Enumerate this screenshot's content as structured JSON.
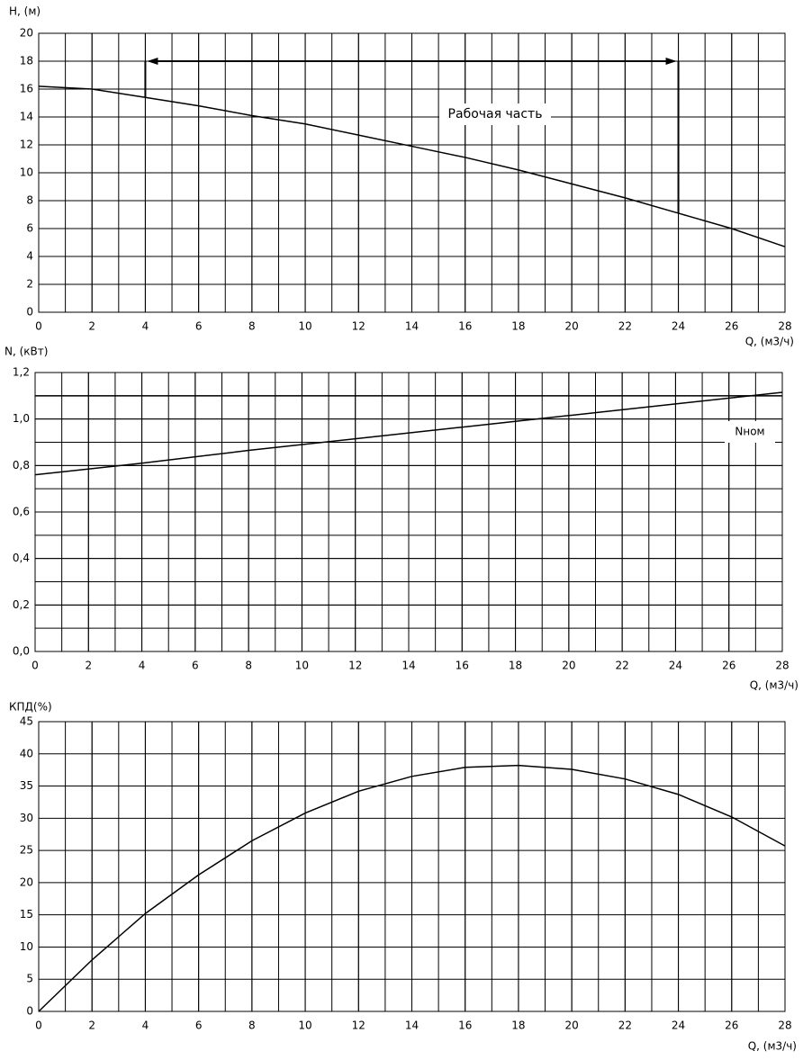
{
  "chart_data": [
    {
      "type": "line",
      "ylabel": "H, (м)",
      "xlabel": "Q, (м3/ч)",
      "x": [
        0,
        2,
        4,
        6,
        8,
        10,
        12,
        14,
        16,
        18,
        20,
        22,
        24,
        26,
        28
      ],
      "series": [
        {
          "name": "H",
          "color": "#000000",
          "values": [
            16.2,
            16.0,
            15.4,
            14.8,
            14.1,
            13.5,
            12.7,
            11.9,
            11.1,
            10.2,
            9.2,
            8.2,
            7.1,
            6.0,
            4.7
          ]
        }
      ],
      "xlim": [
        0,
        28
      ],
      "xticks": [
        0,
        2,
        4,
        6,
        8,
        10,
        12,
        14,
        16,
        18,
        20,
        22,
        24,
        26,
        28
      ],
      "ylim": [
        0,
        20
      ],
      "yticks": [
        0,
        2,
        4,
        6,
        8,
        10,
        12,
        14,
        16,
        18,
        20
      ],
      "grid": true,
      "xgrid_step": 1,
      "annotation": "Рабочая часть",
      "bracket": {
        "x": [
          4,
          24
        ],
        "bottom": [
          15.4,
          7.1
        ],
        "top": 18
      }
    },
    {
      "type": "line",
      "ylabel": "N, (кВт)",
      "xlabel": "Q, (м3/ч)",
      "x": [
        0,
        4,
        8,
        12,
        16,
        20,
        24,
        28
      ],
      "series": [
        {
          "name": "N",
          "color": "#000000",
          "values": [
            0.76,
            0.81,
            0.865,
            0.915,
            0.965,
            1.015,
            1.065,
            1.115
          ]
        },
        {
          "name": "Nном",
          "color": "#000000",
          "values": [
            1.1,
            1.1,
            1.1,
            1.1,
            1.1,
            1.1,
            1.1,
            1.1
          ]
        }
      ],
      "xlim": [
        0,
        28
      ],
      "xticks": [
        0,
        2,
        4,
        6,
        8,
        10,
        12,
        14,
        16,
        18,
        20,
        22,
        24,
        26,
        28
      ],
      "ylim": [
        0,
        1.2
      ],
      "yticks": [
        {
          "value": 0,
          "label": "0,0"
        },
        {
          "value": 0.2,
          "label": "0,2"
        },
        {
          "value": 0.4,
          "label": "0,4"
        },
        {
          "value": 0.6,
          "label": "0,6"
        },
        {
          "value": 0.8,
          "label": "0,8"
        },
        {
          "value": 1.0,
          "label": "1,0"
        },
        {
          "value": 1.2,
          "label": "1,2"
        }
      ],
      "grid": true,
      "xgrid_step": 1,
      "ygrid_step": 0.1
    },
    {
      "type": "line",
      "ylabel": "КПД(%)",
      "xlabel": "Q, (м3/ч)",
      "x": [
        0,
        2,
        4,
        6,
        8,
        10,
        12,
        14,
        16,
        18,
        20,
        22,
        24,
        26,
        28
      ],
      "series": [
        {
          "name": "КПД",
          "color": "#000000",
          "values": [
            0,
            8,
            15.2,
            21.2,
            26.5,
            30.8,
            34.2,
            36.5,
            37.9,
            38.2,
            37.6,
            36.1,
            33.7,
            30.2,
            25.7
          ]
        }
      ],
      "xlim": [
        0,
        28
      ],
      "xticks": [
        0,
        2,
        4,
        6,
        8,
        10,
        12,
        14,
        16,
        18,
        20,
        22,
        24,
        26,
        28
      ],
      "ylim": [
        0,
        45
      ],
      "yticks": [
        0,
        5,
        10,
        15,
        20,
        25,
        30,
        35,
        40,
        45
      ],
      "grid": true,
      "xgrid_step": 1
    }
  ]
}
